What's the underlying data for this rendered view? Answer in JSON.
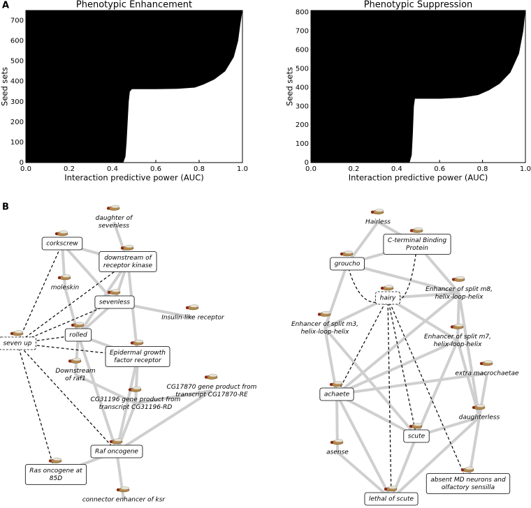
{
  "panels": [
    "A",
    "B"
  ],
  "chart_data": [
    {
      "type": "area",
      "title": "Phenotypic Enhancement",
      "xlabel": "Interaction predictive power (AUC)",
      "ylabel": "Seed sets",
      "color": "#000000",
      "x": [
        0.45,
        0.46,
        0.465,
        0.47,
        0.475,
        0.48,
        0.49,
        0.6,
        0.7,
        0.78,
        0.82,
        0.87,
        0.92,
        0.96,
        0.98,
        0.99,
        1.0
      ],
      "values": [
        0,
        30,
        100,
        200,
        300,
        350,
        362,
        362,
        364,
        370,
        385,
        410,
        450,
        520,
        600,
        680,
        750
      ],
      "xlim": [
        0,
        1
      ],
      "ylim": [
        0,
        750
      ],
      "xticks": [
        {
          "value": 0,
          "label": "0.0"
        },
        0.2,
        0.4,
        0.6,
        0.8,
        {
          "value": 1,
          "label": "1.0"
        }
      ],
      "yticks": [
        0,
        100,
        200,
        300,
        400,
        500,
        600,
        700
      ]
    },
    {
      "type": "area",
      "title": "Phenotypic Suppression",
      "xlabel": "Interaction predictive power (AUC)",
      "ylabel": "Seed sets",
      "color": "#000000",
      "x": [
        0.46,
        0.47,
        0.475,
        0.48,
        0.485,
        0.6,
        0.7,
        0.78,
        0.83,
        0.88,
        0.93,
        0.97,
        0.99,
        1.0
      ],
      "values": [
        0,
        40,
        150,
        300,
        340,
        340,
        345,
        360,
        385,
        420,
        480,
        580,
        700,
        810
      ],
      "xlim": [
        0,
        1
      ],
      "ylim": [
        0,
        810
      ],
      "xticks": [
        {
          "value": 0,
          "label": "0.0"
        },
        0.2,
        0.4,
        0.6,
        0.8,
        {
          "value": 1,
          "label": "1.0"
        }
      ],
      "yticks": [
        0,
        100,
        200,
        300,
        400,
        500,
        600,
        700,
        800
      ]
    }
  ],
  "networks": [
    {
      "nodes": [
        {
          "label": [
            "corkscrew"
          ]
        },
        {
          "label": [
            "daughter of",
            "sevenless"
          ]
        },
        {
          "label": [
            "downstream of",
            "receptor kinase"
          ]
        },
        {
          "label": [
            "moleskin"
          ]
        },
        {
          "label": [
            "sevenless"
          ]
        },
        {
          "label": [
            "Insulin-like receptor"
          ]
        },
        {
          "label": [
            "rolled"
          ]
        },
        {
          "label": [
            "seven up"
          ]
        },
        {
          "label": [
            "Epidermal growth",
            "factor receptor"
          ]
        },
        {
          "label": [
            "Downstream",
            "of raf1"
          ]
        },
        {
          "label": [
            "CG17870 gene product from",
            "transcript CG17870-RE"
          ]
        },
        {
          "label": [
            "CG31196 gene product from",
            "transcript CG31196-RD"
          ]
        },
        {
          "label": [
            "Raf oncogene"
          ]
        },
        {
          "label": [
            "Ras oncogene at",
            "85D"
          ]
        },
        {
          "label": [
            "connector enhancer of ksr"
          ]
        }
      ]
    },
    {
      "nodes": [
        {
          "label": [
            "Hairless"
          ]
        },
        {
          "label": [
            "C-terminal Binding",
            "Protein"
          ]
        },
        {
          "label": [
            "groucho"
          ]
        },
        {
          "label": [
            "hairy"
          ]
        },
        {
          "label": [
            "Enhancer of split m8,",
            "helix-loop-helix"
          ]
        },
        {
          "label": [
            "Enhancer of split m3,",
            "helix-loop-helix"
          ]
        },
        {
          "label": [
            "Enhancer of split m7,",
            "helix-loop-helix"
          ]
        },
        {
          "label": [
            "extra macrochaetae"
          ]
        },
        {
          "label": [
            "achaete"
          ]
        },
        {
          "label": [
            "daughterless"
          ]
        },
        {
          "label": [
            "scute"
          ]
        },
        {
          "label": [
            "asense"
          ]
        },
        {
          "label": [
            "absent MD neurons and",
            "olfactory sensilla"
          ]
        },
        {
          "label": [
            "lethal of scute"
          ]
        }
      ]
    }
  ]
}
